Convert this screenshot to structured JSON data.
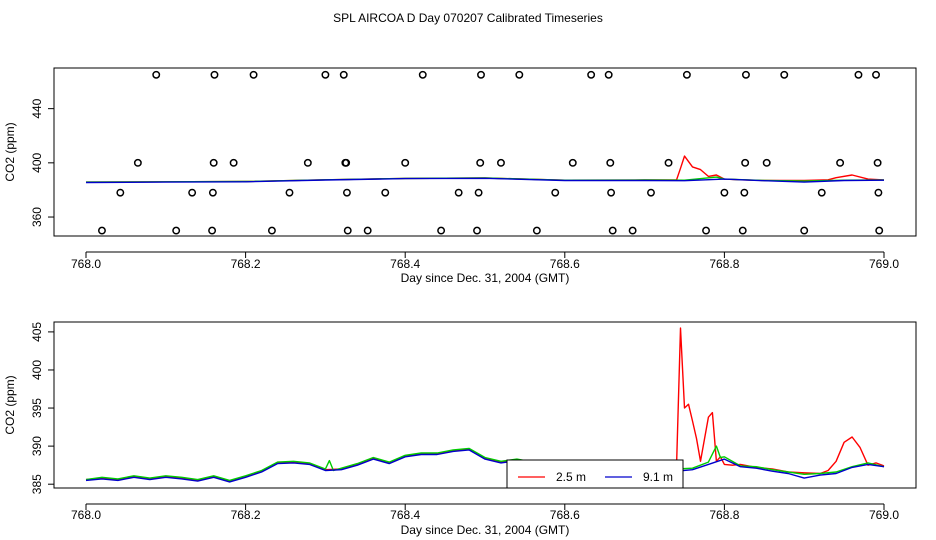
{
  "title": "SPL AIRCOA D  Day 070207  Calibrated Timeseries",
  "chart_data": [
    {
      "type": "line",
      "xlabel": "Day since Dec. 31, 2004 (GMT)",
      "ylabel": "CO2 (ppm)",
      "xlim": [
        768.0,
        769.0
      ],
      "ylim": [
        346,
        470
      ],
      "x_ticks": [
        "768.0",
        "768.2",
        "768.4",
        "768.6",
        "768.8",
        "769.0"
      ],
      "y_ticks": [
        "360",
        "400",
        "440"
      ],
      "y_tick_values": [
        360,
        400,
        440
      ],
      "grid": false,
      "series": [
        {
          "color": "#ff0000",
          "x": [
            768.0,
            768.1,
            768.2,
            768.3,
            768.4,
            768.5,
            768.6,
            768.7,
            768.74,
            768.745,
            768.75,
            768.76,
            768.77,
            768.78,
            768.79,
            768.8,
            768.82,
            768.85,
            768.9,
            768.93,
            768.94,
            768.96,
            768.98,
            769.0
          ],
          "y": [
            385.8,
            386,
            386.2,
            387.5,
            388.5,
            388.8,
            387.2,
            387.3,
            387.3,
            396,
            405,
            397,
            395,
            390,
            391,
            388,
            387.5,
            387,
            387,
            387.5,
            389,
            391,
            388,
            387.3
          ]
        },
        {
          "color": "#00cc00",
          "x": [
            768.0,
            768.1,
            768.2,
            768.3,
            768.4,
            768.5,
            768.6,
            768.7,
            768.75,
            768.79,
            768.8,
            768.85,
            768.9,
            768.95,
            769.0
          ],
          "y": [
            385.8,
            386,
            386.2,
            387.5,
            388.5,
            388.8,
            387.2,
            387.3,
            387.2,
            389.5,
            388,
            387,
            386.5,
            387.2,
            387.3
          ]
        },
        {
          "color": "#0000cc",
          "x": [
            768.0,
            768.1,
            768.2,
            768.3,
            768.4,
            768.5,
            768.6,
            768.7,
            768.75,
            768.8,
            768.85,
            768.9,
            768.95,
            769.0
          ],
          "y": [
            385.5,
            385.8,
            386,
            387.3,
            388.4,
            388.6,
            387,
            387,
            386.8,
            388,
            386.8,
            385.8,
            387,
            387.2
          ]
        }
      ],
      "scatter": {
        "symbol": "open-circle",
        "points": [
          [
            768.02,
            350
          ],
          [
            768.043,
            378
          ],
          [
            768.065,
            400
          ],
          [
            768.088,
            465
          ],
          [
            768.113,
            350
          ],
          [
            768.133,
            378
          ],
          [
            768.158,
            350
          ],
          [
            768.159,
            378
          ],
          [
            768.16,
            400
          ],
          [
            768.161,
            465
          ],
          [
            768.185,
            400
          ],
          [
            768.21,
            465
          ],
          [
            768.233,
            350
          ],
          [
            768.255,
            378
          ],
          [
            768.278,
            400
          ],
          [
            768.3,
            465
          ],
          [
            768.323,
            465
          ],
          [
            768.325,
            400
          ],
          [
            768.326,
            400
          ],
          [
            768.327,
            378
          ],
          [
            768.328,
            350
          ],
          [
            768.353,
            350
          ],
          [
            768.375,
            378
          ],
          [
            768.4,
            400
          ],
          [
            768.422,
            465
          ],
          [
            768.445,
            350
          ],
          [
            768.467,
            378
          ],
          [
            768.49,
            350
          ],
          [
            768.492,
            378
          ],
          [
            768.494,
            400
          ],
          [
            768.495,
            465
          ],
          [
            768.52,
            400
          ],
          [
            768.543,
            465
          ],
          [
            768.565,
            350
          ],
          [
            768.588,
            378
          ],
          [
            768.61,
            400
          ],
          [
            768.633,
            465
          ],
          [
            768.655,
            465
          ],
          [
            768.657,
            400
          ],
          [
            768.658,
            378
          ],
          [
            768.66,
            350
          ],
          [
            768.685,
            350
          ],
          [
            768.708,
            378
          ],
          [
            768.73,
            400
          ],
          [
            768.753,
            465
          ],
          [
            768.777,
            350
          ],
          [
            768.8,
            378
          ],
          [
            768.823,
            350
          ],
          [
            768.825,
            378
          ],
          [
            768.826,
            400
          ],
          [
            768.827,
            465
          ],
          [
            768.853,
            400
          ],
          [
            768.875,
            465
          ],
          [
            768.9,
            350
          ],
          [
            768.922,
            378
          ],
          [
            768.945,
            400
          ],
          [
            768.968,
            465
          ],
          [
            768.99,
            465
          ],
          [
            768.992,
            400
          ],
          [
            768.993,
            378
          ],
          [
            768.994,
            350
          ]
        ]
      }
    },
    {
      "type": "line",
      "xlabel": "Day since Dec. 31, 2004 (GMT)",
      "ylabel": "CO2 (ppm)",
      "xlim": [
        768.0,
        769.0
      ],
      "ylim": [
        384.5,
        406.3
      ],
      "x_ticks": [
        "768.0",
        "768.2",
        "768.4",
        "768.6",
        "768.8",
        "769.0"
      ],
      "y_ticks": [
        "385",
        "390",
        "395",
        "400",
        "405"
      ],
      "y_tick_values": [
        385,
        390,
        395,
        400,
        405
      ],
      "grid": false,
      "legend": {
        "position": "bottom-center",
        "entries": [
          {
            "label": "2.5 m",
            "color": "#ff0000"
          },
          {
            "label": "9.1 m",
            "color": "#0000cc"
          }
        ]
      },
      "series": [
        {
          "name": "2.5 m",
          "color": "#ff0000",
          "x": [
            768.0,
            768.02,
            768.04,
            768.06,
            768.08,
            768.1,
            768.12,
            768.14,
            768.16,
            768.18,
            768.2,
            768.22,
            768.24,
            768.26,
            768.28,
            768.3,
            768.32,
            768.34,
            768.36,
            768.38,
            768.4,
            768.42,
            768.44,
            768.46,
            768.48,
            768.5,
            768.52,
            768.54,
            768.56,
            768.58,
            768.6,
            768.62,
            768.64,
            768.66,
            768.68,
            768.7,
            768.72,
            768.74,
            768.745,
            768.75,
            768.755,
            768.76,
            768.765,
            768.77,
            768.78,
            768.785,
            768.79,
            768.795,
            768.8,
            768.81,
            768.82,
            768.84,
            768.86,
            768.88,
            768.9,
            768.92,
            768.93,
            768.94,
            768.95,
            768.96,
            768.97,
            768.98,
            768.99,
            769.0
          ],
          "y": [
            385.6,
            385.8,
            385.6,
            386.0,
            385.7,
            386.0,
            385.8,
            385.5,
            386.0,
            385.4,
            386.0,
            386.7,
            387.8,
            387.9,
            387.7,
            386.9,
            387.0,
            387.6,
            388.4,
            387.8,
            388.7,
            389.0,
            389.0,
            389.4,
            389.6,
            388.4,
            387.9,
            388.2,
            387.8,
            386.9,
            386.7,
            387.2,
            387.4,
            387.6,
            387.5,
            387.3,
            387.3,
            387.2,
            405.5,
            395.0,
            395.5,
            393.3,
            391.0,
            388.0,
            393.8,
            394.4,
            388.0,
            388.6,
            387.6,
            387.5,
            387.6,
            387.2,
            387.0,
            386.6,
            386.5,
            386.4,
            386.8,
            388.0,
            390.5,
            391.2,
            389.8,
            387.5,
            387.8,
            387.4
          ]
        },
        {
          "color": "#00cc00",
          "x": [
            768.0,
            768.02,
            768.04,
            768.06,
            768.08,
            768.1,
            768.12,
            768.14,
            768.16,
            768.18,
            768.2,
            768.22,
            768.24,
            768.26,
            768.28,
            768.3,
            768.305,
            768.31,
            768.32,
            768.34,
            768.36,
            768.38,
            768.4,
            768.42,
            768.44,
            768.46,
            768.48,
            768.5,
            768.52,
            768.54,
            768.56,
            768.58,
            768.6,
            768.62,
            768.64,
            768.66,
            768.68,
            768.7,
            768.72,
            768.74,
            768.76,
            768.78,
            768.79,
            768.795,
            768.8,
            768.82,
            768.84,
            768.86,
            768.88,
            768.9,
            768.92,
            768.94,
            768.96,
            768.98,
            769.0
          ],
          "y": [
            385.6,
            385.9,
            385.7,
            386.1,
            385.8,
            386.1,
            385.9,
            385.6,
            386.1,
            385.5,
            386.1,
            386.8,
            387.9,
            388.0,
            387.8,
            387.0,
            388.1,
            386.8,
            387.1,
            387.7,
            388.5,
            387.9,
            388.8,
            389.1,
            389.1,
            389.5,
            389.7,
            388.5,
            388.0,
            388.3,
            387.9,
            387.0,
            386.8,
            387.3,
            387.5,
            387.6,
            387.4,
            387.3,
            387.1,
            387.0,
            387.1,
            387.9,
            390.0,
            388.5,
            388.6,
            387.4,
            387.3,
            386.9,
            386.6,
            386.3,
            386.4,
            386.6,
            387.3,
            387.8,
            387.3
          ]
        },
        {
          "name": "9.1 m",
          "color": "#0000cc",
          "x": [
            768.0,
            768.02,
            768.04,
            768.06,
            768.08,
            768.1,
            768.12,
            768.14,
            768.16,
            768.18,
            768.2,
            768.22,
            768.24,
            768.26,
            768.28,
            768.3,
            768.32,
            768.34,
            768.36,
            768.38,
            768.4,
            768.42,
            768.44,
            768.46,
            768.48,
            768.5,
            768.52,
            768.54,
            768.56,
            768.58,
            768.6,
            768.62,
            768.64,
            768.66,
            768.68,
            768.7,
            768.72,
            768.74,
            768.76,
            768.78,
            768.8,
            768.82,
            768.84,
            768.86,
            768.88,
            768.9,
            768.92,
            768.94,
            768.96,
            768.98,
            769.0
          ],
          "y": [
            385.5,
            385.7,
            385.5,
            385.9,
            385.6,
            385.9,
            385.7,
            385.4,
            385.9,
            385.3,
            385.9,
            386.6,
            387.7,
            387.8,
            387.6,
            386.8,
            386.9,
            387.5,
            388.3,
            387.7,
            388.6,
            388.9,
            388.9,
            389.3,
            389.5,
            388.3,
            387.8,
            388.1,
            387.7,
            386.8,
            386.6,
            387.1,
            387.3,
            387.4,
            387.3,
            387.0,
            386.9,
            386.7,
            386.9,
            387.6,
            388.3,
            387.3,
            387.1,
            386.7,
            386.4,
            385.8,
            386.2,
            386.4,
            387.2,
            387.6,
            387.3
          ]
        }
      ]
    }
  ]
}
